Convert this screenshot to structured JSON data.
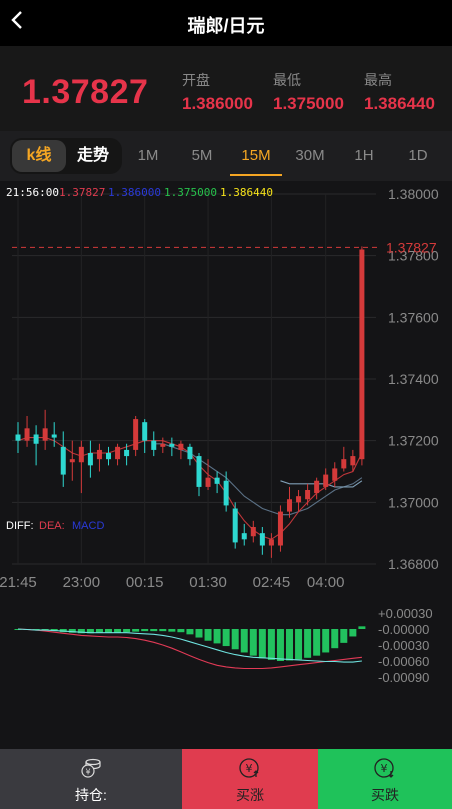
{
  "header": {
    "title": "瑞郎/日元"
  },
  "quote": {
    "price": "1.37827",
    "open_label": "开盘",
    "open": "1.386000",
    "low_label": "最低",
    "low": "1.375000",
    "high_label": "最高",
    "high": "1.386440"
  },
  "chart_type_toggle": {
    "kline": "k线",
    "trend": "走势"
  },
  "periods": [
    "1M",
    "5M",
    "15M",
    "30M",
    "1H",
    "1D"
  ],
  "active_period": "15M",
  "info_bar": {
    "time": "21:56:00",
    "close": "1.37827",
    "open": "1.386000",
    "low": "1.375000",
    "high": "1.386440"
  },
  "price_axis": [
    "1.38000",
    "1.37800",
    "1.37600",
    "1.37400",
    "1.37200",
    "1.37000",
    "1.36800"
  ],
  "last_price_tag": "1.37827",
  "time_axis": [
    "21:45",
    "23:00",
    "00:15",
    "01:30",
    "02:45",
    "04:00"
  ],
  "macd_labels": {
    "diff": "DIFF:",
    "dea": "DEA:",
    "macd": "MACD"
  },
  "macd_axis": [
    "+0.00030",
    "-0.00000",
    "-0.00030",
    "-0.00060",
    "-0.00090"
  ],
  "footer": {
    "position": "持仓:",
    "buy_up": "买涨",
    "buy_down": "买跌"
  },
  "colors": {
    "up": "#d43a3a",
    "down": "#2ed8d0",
    "accent": "#f5a623",
    "buy": "#e03c4f",
    "sell": "#1fc25a"
  },
  "chart_data": {
    "type": "candlestick",
    "ylim": [
      1.368,
      1.38
    ],
    "candles": [
      {
        "t": "21:45",
        "o": 1.3722,
        "c": 1.372,
        "h": 1.3726,
        "l": 1.3716
      },
      {
        "t": "",
        "o": 1.372,
        "c": 1.3724,
        "h": 1.3728,
        "l": 1.3718
      },
      {
        "t": "",
        "o": 1.3722,
        "c": 1.3719,
        "h": 1.3725,
        "l": 1.3712
      },
      {
        "t": "",
        "o": 1.372,
        "c": 1.3724,
        "h": 1.373,
        "l": 1.3717
      },
      {
        "t": "",
        "o": 1.3722,
        "c": 1.3721,
        "h": 1.3726,
        "l": 1.3718
      },
      {
        "t": "",
        "o": 1.3718,
        "c": 1.3709,
        "h": 1.3723,
        "l": 1.3705
      },
      {
        "t": "",
        "o": 1.3713,
        "c": 1.3714,
        "h": 1.372,
        "l": 1.3707
      },
      {
        "t": "23:00",
        "o": 1.3713,
        "c": 1.3718,
        "h": 1.372,
        "l": 1.3703
      },
      {
        "t": "",
        "o": 1.3716,
        "c": 1.3712,
        "h": 1.372,
        "l": 1.3708
      },
      {
        "t": "",
        "o": 1.3714,
        "c": 1.3717,
        "h": 1.3719,
        "l": 1.371
      },
      {
        "t": "",
        "o": 1.3716,
        "c": 1.3714,
        "h": 1.3718,
        "l": 1.3712
      },
      {
        "t": "",
        "o": 1.3714,
        "c": 1.3718,
        "h": 1.3719,
        "l": 1.3712
      },
      {
        "t": "",
        "o": 1.3717,
        "c": 1.3715,
        "h": 1.3719,
        "l": 1.3712
      },
      {
        "t": "",
        "o": 1.3717,
        "c": 1.3727,
        "h": 1.3728,
        "l": 1.3715
      },
      {
        "t": "00:15",
        "o": 1.3726,
        "c": 1.372,
        "h": 1.3727,
        "l": 1.3716
      },
      {
        "t": "",
        "o": 1.372,
        "c": 1.3717,
        "h": 1.3723,
        "l": 1.3715
      },
      {
        "t": "",
        "o": 1.3718,
        "c": 1.3719,
        "h": 1.3721,
        "l": 1.3716
      },
      {
        "t": "",
        "o": 1.3719,
        "c": 1.3718,
        "h": 1.3721,
        "l": 1.3715
      },
      {
        "t": "",
        "o": 1.3717,
        "c": 1.3719,
        "h": 1.372,
        "l": 1.3714
      },
      {
        "t": "",
        "o": 1.3718,
        "c": 1.3714,
        "h": 1.3719,
        "l": 1.3712
      },
      {
        "t": "",
        "o": 1.3715,
        "c": 1.3705,
        "h": 1.3716,
        "l": 1.3702
      },
      {
        "t": "01:30",
        "o": 1.3705,
        "c": 1.3708,
        "h": 1.3714,
        "l": 1.3704
      },
      {
        "t": "",
        "o": 1.3708,
        "c": 1.3706,
        "h": 1.371,
        "l": 1.3703
      },
      {
        "t": "",
        "o": 1.3707,
        "c": 1.3699,
        "h": 1.371,
        "l": 1.3697
      },
      {
        "t": "",
        "o": 1.3698,
        "c": 1.3687,
        "h": 1.37,
        "l": 1.3685
      },
      {
        "t": "",
        "o": 1.369,
        "c": 1.3688,
        "h": 1.3693,
        "l": 1.3686
      },
      {
        "t": "",
        "o": 1.3689,
        "c": 1.3692,
        "h": 1.3694,
        "l": 1.3687
      },
      {
        "t": "",
        "o": 1.369,
        "c": 1.3686,
        "h": 1.3692,
        "l": 1.3683
      },
      {
        "t": "02:45",
        "o": 1.3686,
        "c": 1.3688,
        "h": 1.369,
        "l": 1.3682
      },
      {
        "t": "",
        "o": 1.3686,
        "c": 1.3697,
        "h": 1.3699,
        "l": 1.3684
      },
      {
        "t": "",
        "o": 1.3697,
        "c": 1.3701,
        "h": 1.3705,
        "l": 1.3695
      },
      {
        "t": "",
        "o": 1.37,
        "c": 1.3702,
        "h": 1.3704,
        "l": 1.3697
      },
      {
        "t": "",
        "o": 1.3701,
        "c": 1.3704,
        "h": 1.3706,
        "l": 1.3699
      },
      {
        "t": "",
        "o": 1.3703,
        "c": 1.3707,
        "h": 1.3708,
        "l": 1.3701
      },
      {
        "t": "04:00",
        "o": 1.3705,
        "c": 1.3709,
        "h": 1.3711,
        "l": 1.3704
      },
      {
        "t": "",
        "o": 1.3707,
        "c": 1.3711,
        "h": 1.3713,
        "l": 1.3705
      },
      {
        "t": "",
        "o": 1.3711,
        "c": 1.3714,
        "h": 1.3718,
        "l": 1.371
      },
      {
        "t": "",
        "o": 1.3712,
        "c": 1.3715,
        "h": 1.3717,
        "l": 1.371
      },
      {
        "t": "",
        "o": 1.3714,
        "c": 1.3782,
        "h": 1.3783,
        "l": 1.3712
      }
    ],
    "ma_fast": [
      1.372,
      1.3721,
      1.3721,
      1.3721,
      1.372,
      1.3718,
      1.3716,
      1.3715,
      1.3716,
      1.3716,
      1.3716,
      1.3717,
      1.3718,
      1.3719,
      1.372,
      1.372,
      1.372,
      1.3719,
      1.3718,
      1.3716,
      1.3712,
      1.3709,
      1.3707,
      1.3703,
      1.3698,
      1.3694,
      1.3691,
      1.3689,
      1.3688,
      1.369,
      1.3693,
      1.3697,
      1.37,
      1.3703,
      1.3705,
      1.3707,
      1.3709,
      1.371,
      1.3716
    ],
    "ma_slow": [
      null,
      null,
      null,
      null,
      null,
      null,
      null,
      null,
      null,
      null,
      null,
      null,
      null,
      null,
      null,
      1.3719,
      1.3719,
      1.3718,
      1.3717,
      1.3716,
      1.3714,
      1.3712,
      1.371,
      1.3708,
      1.3705,
      1.3702,
      1.37,
      1.3698,
      1.3697,
      1.3696,
      1.3696,
      1.3697,
      1.3698,
      1.37,
      1.3702,
      1.3704,
      1.3705,
      1.3706,
      1.3708
    ],
    "ma_third": [
      null,
      null,
      null,
      null,
      null,
      null,
      null,
      null,
      null,
      null,
      null,
      null,
      null,
      null,
      null,
      null,
      null,
      null,
      null,
      null,
      null,
      null,
      null,
      null,
      null,
      null,
      null,
      null,
      null,
      1.3707,
      1.3706,
      1.3706,
      1.3706,
      1.3706,
      1.3706,
      1.3705,
      1.3705,
      1.3705,
      1.3707
    ],
    "macd": {
      "ylim": [
        -0.0009,
        0.0003
      ],
      "hist": [
        0.0,
        -0.0,
        -0.0,
        -2e-05,
        -4e-05,
        -6e-05,
        -7e-05,
        -8e-05,
        -8e-05,
        -7e-05,
        -7e-05,
        -7e-05,
        -6e-05,
        -5e-05,
        -4e-05,
        -4e-05,
        -4e-05,
        -5e-05,
        -6e-05,
        -0.0001,
        -0.00016,
        -0.00022,
        -0.00027,
        -0.00032,
        -0.00038,
        -0.00044,
        -0.0005,
        -0.00055,
        -0.00058,
        -0.0006,
        -0.00059,
        -0.00057,
        -0.00054,
        -0.0005,
        -0.00044,
        -0.00036,
        -0.00026,
        -0.00014,
        5e-05
      ],
      "diff": [
        0.0,
        -1e-05,
        -2e-05,
        -2e-05,
        -3e-05,
        -4e-05,
        -5e-05,
        -6e-05,
        -7e-05,
        -7e-05,
        -7e-05,
        -7e-05,
        -7e-05,
        -8e-05,
        -9e-05,
        -0.0001,
        -0.00012,
        -0.00015,
        -0.00019,
        -0.00024,
        -0.00029,
        -0.00034,
        -0.00039,
        -0.00044,
        -0.00048,
        -0.00051,
        -0.00053,
        -0.00054,
        -0.00055,
        -0.00056,
        -0.00057,
        -0.00058,
        -0.00059,
        -0.0006,
        -0.00061,
        -0.00061,
        -0.00062,
        -0.00062,
        -0.0006
      ],
      "dea": [
        0.0,
        -1e-05,
        -2e-05,
        -4e-05,
        -6e-05,
        -8e-05,
        -0.0001,
        -0.00012,
        -0.00013,
        -0.00014,
        -0.00015,
        -0.00015,
        -0.00016,
        -0.00018,
        -0.00021,
        -0.00025,
        -0.0003,
        -0.00036,
        -0.00043,
        -0.0005,
        -0.00057,
        -0.00063,
        -0.00068,
        -0.00071,
        -0.00073,
        -0.00074,
        -0.00074,
        -0.00074,
        -0.00073,
        -0.00071,
        -0.00069,
        -0.00067,
        -0.00065,
        -0.00063,
        -0.00061,
        -0.00059,
        -0.00057,
        -0.00055,
        -0.00053
      ]
    }
  }
}
